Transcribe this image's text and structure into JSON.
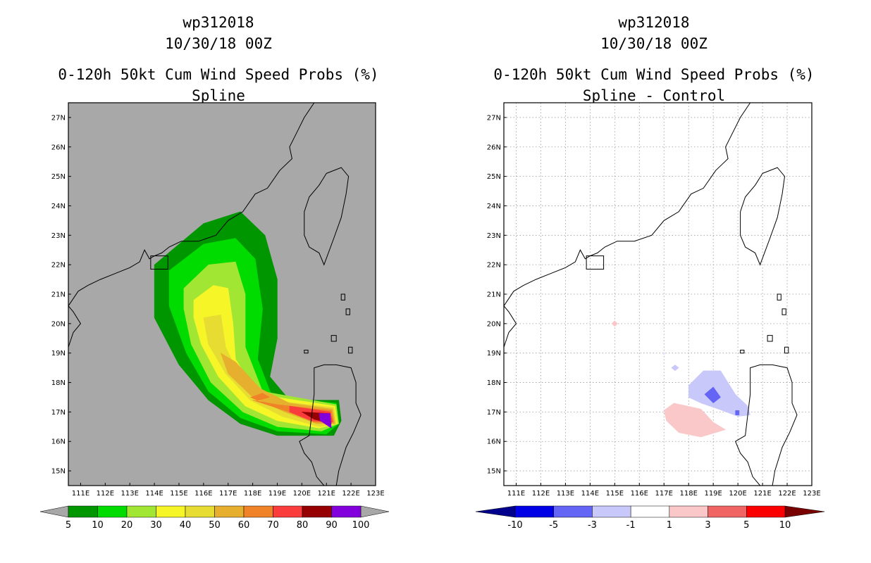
{
  "colors": {
    "land_fill": "#a8a8a8",
    "coast": "#000000",
    "grid": "#9a9a9a"
  },
  "chart_data": [
    {
      "type": "heatmap",
      "title_lines": [
        "wp312018",
        "10/30/18 00Z",
        "",
        "0-120h 50kt Cum Wind Speed Probs (%)",
        "Spline"
      ],
      "storm": "wp312018",
      "datetime": "10/30/18 00Z",
      "variable": "0-120h 50kt Cum Wind Speed Probs (%)",
      "subtitle": "Spline",
      "x_ticks": [
        "111E",
        "112E",
        "113E",
        "114E",
        "115E",
        "116E",
        "117E",
        "118E",
        "119E",
        "120E",
        "121E",
        "122E",
        "123E"
      ],
      "y_ticks": [
        "27N",
        "26N",
        "25N",
        "24N",
        "23N",
        "22N",
        "21N",
        "20N",
        "19N",
        "18N",
        "17N",
        "16N",
        "15N"
      ],
      "xlim": [
        110.5,
        123
      ],
      "ylim": [
        14.5,
        27.5
      ],
      "grid": false,
      "colorbar": {
        "labels": [
          "5",
          "10",
          "20",
          "30",
          "40",
          "50",
          "60",
          "70",
          "80",
          "90",
          "100"
        ],
        "colors": [
          "#009600",
          "#00dc00",
          "#a0e632",
          "#f5f528",
          "#e6dc32",
          "#e6af2d",
          "#f08228",
          "#fa3c3c",
          "#960000",
          "#8200dc"
        ],
        "end_colors": [
          "#a8a8a8",
          "#a8a8a8"
        ]
      },
      "contours": [
        {
          "level": 5,
          "color": "#009600",
          "points": [
            [
              114.0,
              22.0
            ],
            [
              116.0,
              23.4
            ],
            [
              117.5,
              23.8
            ],
            [
              118.5,
              23.0
            ],
            [
              119.0,
              21.5
            ],
            [
              119.0,
              19.5
            ],
            [
              118.7,
              18.2
            ],
            [
              119.5,
              17.4
            ],
            [
              121.5,
              17.4
            ],
            [
              121.6,
              16.7
            ],
            [
              121.3,
              16.2
            ],
            [
              119.0,
              16.2
            ],
            [
              117.5,
              16.6
            ],
            [
              116.2,
              17.4
            ],
            [
              115.0,
              18.6
            ],
            [
              114.0,
              20.2
            ],
            [
              114.0,
              21.4
            ]
          ]
        },
        {
          "level": 10,
          "color": "#00dc00",
          "points": [
            [
              114.6,
              21.8
            ],
            [
              116.0,
              22.7
            ],
            [
              117.3,
              22.9
            ],
            [
              118.1,
              22.2
            ],
            [
              118.4,
              20.5
            ],
            [
              118.2,
              18.8
            ],
            [
              118.8,
              17.5
            ],
            [
              121.4,
              17.3
            ],
            [
              121.5,
              16.6
            ],
            [
              121.0,
              16.25
            ],
            [
              119.0,
              16.35
            ],
            [
              117.5,
              16.8
            ],
            [
              116.2,
              17.7
            ],
            [
              115.3,
              19.0
            ],
            [
              114.6,
              20.6
            ]
          ]
        },
        {
          "level": 20,
          "color": "#a0e632",
          "points": [
            [
              115.2,
              21.2
            ],
            [
              116.2,
              22.0
            ],
            [
              117.3,
              22.1
            ],
            [
              117.7,
              21.0
            ],
            [
              117.7,
              19.2
            ],
            [
              118.4,
              17.7
            ],
            [
              121.4,
              17.25
            ],
            [
              121.5,
              16.6
            ],
            [
              120.8,
              16.35
            ],
            [
              119.0,
              16.5
            ],
            [
              117.6,
              17.0
            ],
            [
              116.3,
              18.0
            ],
            [
              115.5,
              19.3
            ],
            [
              115.2,
              20.5
            ]
          ]
        },
        {
          "level": 30,
          "color": "#f5f528",
          "points": [
            [
              115.6,
              20.8
            ],
            [
              116.4,
              21.3
            ],
            [
              117.0,
              21.2
            ],
            [
              117.2,
              20.0
            ],
            [
              117.3,
              18.8
            ],
            [
              118.2,
              17.6
            ],
            [
              121.35,
              17.2
            ],
            [
              121.45,
              16.6
            ],
            [
              120.7,
              16.45
            ],
            [
              119.0,
              16.7
            ],
            [
              117.7,
              17.2
            ],
            [
              116.6,
              18.2
            ],
            [
              115.9,
              19.3
            ],
            [
              115.6,
              20.2
            ]
          ]
        },
        {
          "level": 40,
          "color": "#e6dc32",
          "points": [
            [
              116.0,
              20.2
            ],
            [
              116.7,
              20.3
            ],
            [
              116.9,
              19.2
            ],
            [
              117.6,
              18.0
            ],
            [
              118.7,
              17.4
            ],
            [
              121.3,
              17.15
            ],
            [
              121.4,
              16.6
            ],
            [
              120.7,
              16.5
            ],
            [
              119.2,
              16.85
            ],
            [
              117.9,
              17.4
            ],
            [
              116.9,
              18.3
            ],
            [
              116.2,
              19.3
            ]
          ]
        },
        {
          "level": 50,
          "color": "#e6af2d",
          "points": [
            [
              116.7,
              19.0
            ],
            [
              117.3,
              18.7
            ],
            [
              118.3,
              17.8
            ],
            [
              119.5,
              17.3
            ],
            [
              121.25,
              17.1
            ],
            [
              121.35,
              16.6
            ],
            [
              120.6,
              16.6
            ],
            [
              119.3,
              17.0
            ],
            [
              118.0,
              17.5
            ],
            [
              117.0,
              18.3
            ]
          ]
        },
        {
          "level": 60,
          "color": "#f08228",
          "points": [
            [
              118.0,
              17.4
            ],
            [
              119.0,
              17.25
            ],
            [
              121.2,
              17.05
            ],
            [
              121.3,
              16.65
            ],
            [
              120.5,
              16.65
            ],
            [
              119.3,
              17.05
            ]
          ]
        },
        {
          "level": 70,
          "color": "#fa3c3c",
          "points": [
            [
              119.5,
              17.2
            ],
            [
              121.15,
              17.0
            ],
            [
              121.25,
              16.65
            ],
            [
              120.4,
              16.7
            ],
            [
              119.5,
              17.0
            ]
          ]
        },
        {
          "level": 80,
          "color": "#960000",
          "points": [
            [
              120.0,
              17.0
            ],
            [
              121.1,
              16.95
            ],
            [
              121.2,
              16.6
            ],
            [
              120.5,
              16.75
            ]
          ]
        },
        {
          "level": 90,
          "color": "#8200dc",
          "points": [
            [
              120.7,
              16.95
            ],
            [
              121.15,
              16.95
            ],
            [
              121.2,
              16.45
            ],
            [
              120.75,
              16.7
            ]
          ]
        }
      ],
      "spots": [
        {
          "level": 60,
          "color": "#f08228",
          "points": [
            [
              117.9,
              17.5
            ],
            [
              118.4,
              17.65
            ],
            [
              118.7,
              17.5
            ],
            [
              118.2,
              17.38
            ]
          ]
        }
      ]
    },
    {
      "type": "heatmap",
      "title_lines": [
        "wp312018",
        "10/30/18 00Z",
        "",
        "0-120h 50kt Cum Wind Speed Probs (%)",
        "Spline - Control"
      ],
      "storm": "wp312018",
      "datetime": "10/30/18 00Z",
      "variable": "0-120h 50kt Cum Wind Speed Probs (%)",
      "subtitle": "Spline - Control",
      "x_ticks": [
        "111E",
        "112E",
        "113E",
        "114E",
        "115E",
        "116E",
        "117E",
        "118E",
        "119E",
        "120E",
        "121E",
        "122E",
        "123E"
      ],
      "y_ticks": [
        "27N",
        "26N",
        "25N",
        "24N",
        "23N",
        "22N",
        "21N",
        "20N",
        "19N",
        "18N",
        "17N",
        "16N",
        "15N"
      ],
      "xlim": [
        110.5,
        123
      ],
      "ylim": [
        14.5,
        27.5
      ],
      "grid": true,
      "colorbar": {
        "labels": [
          "-10",
          "-5",
          "-3",
          "-1",
          "1",
          "3",
          "5",
          "10"
        ],
        "colors": [
          "#0000e6",
          "#6464f5",
          "#c8c8fa",
          "#ffffff",
          "#fac8c8",
          "#f06464",
          "#fa0000"
        ],
        "end_colors": [
          "#00008c",
          "#780000"
        ]
      },
      "contours": [
        {
          "level": -1,
          "color": "#c8c8fa",
          "points": [
            [
              118.0,
              17.9
            ],
            [
              118.6,
              18.4
            ],
            [
              119.3,
              18.4
            ],
            [
              119.9,
              17.6
            ],
            [
              120.4,
              17.2
            ],
            [
              120.5,
              16.9
            ],
            [
              120.0,
              16.85
            ],
            [
              119.2,
              17.1
            ],
            [
              118.5,
              17.3
            ],
            [
              118.0,
              17.5
            ]
          ]
        },
        {
          "level": -3,
          "color": "#6464f5",
          "points": [
            [
              118.65,
              17.6
            ],
            [
              119.0,
              17.85
            ],
            [
              119.3,
              17.5
            ],
            [
              119.0,
              17.3
            ]
          ]
        },
        {
          "level": -3,
          "color": "#6464f5",
          "points": [
            [
              119.9,
              17.05
            ],
            [
              120.05,
              17.05
            ],
            [
              120.05,
              16.9
            ],
            [
              119.9,
              16.9
            ]
          ]
        },
        {
          "level": -1,
          "color": "#c8c8fa",
          "points": [
            [
              117.45,
              18.6
            ],
            [
              117.6,
              18.5
            ],
            [
              117.45,
              18.4
            ],
            [
              117.3,
              18.5
            ]
          ]
        },
        {
          "level": 1,
          "color": "#fac8c8",
          "points": [
            [
              117.0,
              17.05
            ],
            [
              117.4,
              17.3
            ],
            [
              118.5,
              17.1
            ],
            [
              119.0,
              16.65
            ],
            [
              119.5,
              16.4
            ],
            [
              118.5,
              16.15
            ],
            [
              117.6,
              16.3
            ],
            [
              117.1,
              16.7
            ]
          ]
        },
        {
          "level": 1,
          "color": "#fac8c8",
          "points": [
            [
              115.0,
              20.1
            ],
            [
              115.12,
              20.0
            ],
            [
              115.0,
              19.9
            ],
            [
              114.88,
              20.0
            ]
          ]
        },
        {
          "level": 1,
          "color": "#e6e6fa",
          "points": [
            [
              117.0,
              19.02
            ],
            [
              117.06,
              18.98
            ],
            [
              117.0,
              18.94
            ],
            [
              116.94,
              18.98
            ]
          ]
        }
      ],
      "spots": []
    }
  ]
}
